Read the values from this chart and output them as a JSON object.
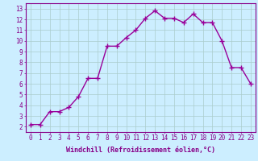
{
  "x": [
    0,
    1,
    2,
    3,
    4,
    5,
    6,
    7,
    8,
    9,
    10,
    11,
    12,
    13,
    14,
    15,
    16,
    17,
    18,
    19,
    20,
    21,
    22,
    23
  ],
  "y": [
    2.2,
    2.2,
    3.4,
    3.4,
    3.8,
    4.8,
    6.5,
    6.5,
    9.5,
    9.5,
    10.3,
    11.0,
    12.1,
    12.8,
    12.1,
    12.1,
    11.7,
    12.5,
    11.7,
    11.7,
    10.0,
    7.5,
    7.5,
    6.0
  ],
  "line_color": "#990099",
  "marker": "+",
  "marker_size": 4,
  "marker_lw": 1.0,
  "line_width": 1.0,
  "bg_color": "#cceeff",
  "grid_color": "#aacccc",
  "xlabel": "Windchill (Refroidissement éolien,°C)",
  "xlim": [
    -0.5,
    23.5
  ],
  "ylim": [
    1.5,
    13.5
  ],
  "xtick_labels": [
    "0",
    "1",
    "2",
    "3",
    "4",
    "5",
    "6",
    "7",
    "8",
    "9",
    "10",
    "11",
    "12",
    "13",
    "14",
    "15",
    "16",
    "17",
    "18",
    "19",
    "20",
    "21",
    "22",
    "23"
  ],
  "ytick_values": [
    2,
    3,
    4,
    5,
    6,
    7,
    8,
    9,
    10,
    11,
    12,
    13
  ],
  "label_color": "#880088",
  "tick_color": "#880088",
  "spine_color": "#880088",
  "xlabel_fontsize": 6.0,
  "tick_fontsize": 5.5
}
